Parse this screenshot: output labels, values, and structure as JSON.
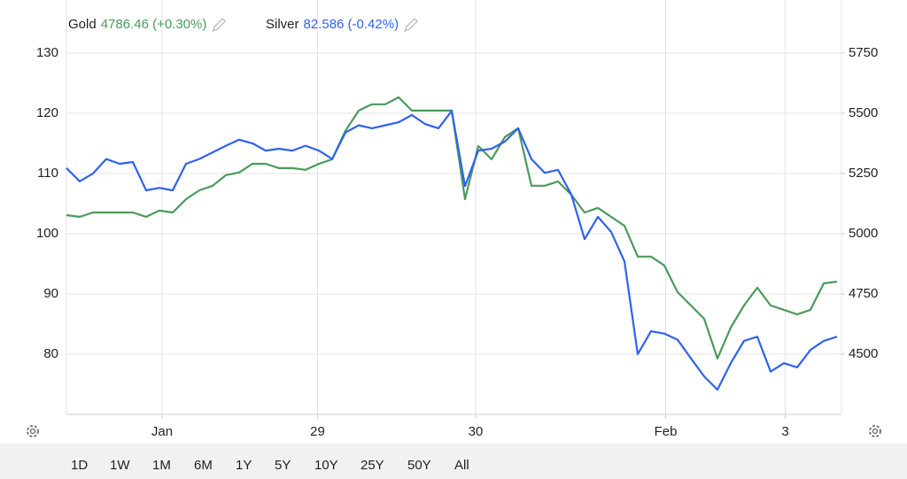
{
  "chart_data": {
    "type": "line",
    "x": [
      0,
      1,
      2,
      3,
      4,
      5,
      6,
      7,
      8,
      9,
      10,
      11,
      12,
      13,
      14,
      15,
      16,
      17,
      18,
      19,
      20,
      21,
      22,
      23,
      24,
      25,
      26,
      27,
      28,
      29,
      30,
      31,
      32,
      33,
      34,
      35,
      36,
      37,
      38,
      39,
      40,
      41,
      42,
      43,
      44,
      45,
      46,
      47,
      48,
      49,
      50,
      51,
      52,
      53,
      54,
      55,
      56,
      57,
      58
    ],
    "xlim": [
      0,
      58
    ],
    "xticks": [
      {
        "value": 7.2,
        "label": "Jan"
      },
      {
        "value": 18.9,
        "label": "29"
      },
      {
        "value": 30.8,
        "label": "30"
      },
      {
        "value": 45.1,
        "label": "Feb"
      },
      {
        "value": 54.1,
        "label": "3"
      }
    ],
    "ylim": [
      70,
      138.8
    ],
    "yticks": [
      80,
      90,
      100,
      110,
      120,
      130
    ],
    "y2lim": [
      4250,
      5970
    ],
    "y2ticks": [
      4500,
      4750,
      5000,
      5250,
      5500,
      5750
    ],
    "grid": true,
    "series": [
      {
        "name": "Gold",
        "quote": "4786.46 (+0.30%)",
        "color": "#4a9a5c",
        "axis": "y2",
        "values": [
          5077,
          5070,
          5088,
          5088,
          5088,
          5088,
          5070,
          5096,
          5088,
          5143,
          5180,
          5199,
          5243,
          5254,
          5290,
          5290,
          5272,
          5272,
          5265,
          5290,
          5309,
          5427,
          5511,
          5537,
          5537,
          5566,
          5511,
          5511,
          5511,
          5511,
          5143,
          5364,
          5309,
          5401,
          5438,
          5199,
          5199,
          5217,
          5162,
          5088,
          5107,
          5070,
          5033,
          4905,
          4905,
          4868,
          4757,
          4702,
          4647,
          4482,
          4610,
          4702,
          4776,
          4702,
          4684,
          4665,
          4684,
          4794,
          4801
        ]
      },
      {
        "name": "Silver",
        "quote": "82.586 (-0.42%)",
        "color": "#2f62f0",
        "axis": "y",
        "values": [
          110.9,
          108.7,
          110,
          112.4,
          111.6,
          111.9,
          107.2,
          107.6,
          107.2,
          111.6,
          112.4,
          113.5,
          114.6,
          115.6,
          115,
          113.8,
          114.1,
          113.8,
          114.6,
          113.8,
          112.4,
          116.8,
          118,
          117.5,
          118,
          118.5,
          119.7,
          118.2,
          117.5,
          120.4,
          107.9,
          113.8,
          114.1,
          115.3,
          117.5,
          112.4,
          110.1,
          110.6,
          106.5,
          99.1,
          102.8,
          100.3,
          95.4,
          80,
          83.8,
          83.4,
          82.4,
          79.3,
          76.3,
          74.1,
          78.5,
          82.2,
          82.9,
          77.1,
          78.5,
          77.8,
          80.7,
          82.2,
          82.9
        ]
      }
    ],
    "ranges": [
      "1D",
      "1W",
      "1M",
      "6M",
      "1Y",
      "5Y",
      "10Y",
      "25Y",
      "50Y",
      "All"
    ],
    "active_range": 1
  }
}
